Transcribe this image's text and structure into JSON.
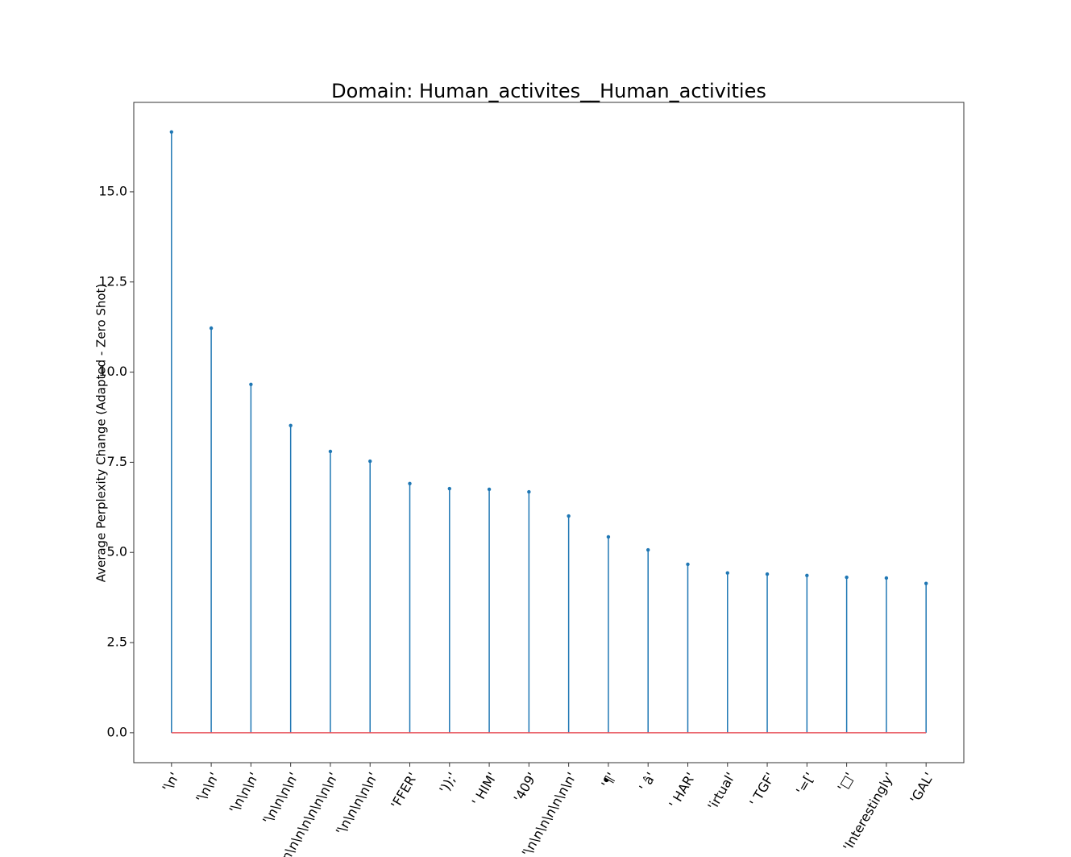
{
  "chart_data": {
    "type": "stem",
    "title": "Domain: Human_activites__Human_activities",
    "y_label": "Average Perplexity Change (Adapted - Zero Shot)",
    "categories": [
      "'\\n'",
      "'\\n\\n'",
      "'\\n\\n\\n'",
      "'\\n\\n\\n\\n'",
      "'\\n\\n\\n\\n\\n\\n\\n\\n'",
      "'\\n\\n\\n\\n\\n'",
      "'FFER'",
      "'));'",
      "' HIM'",
      "'409'",
      "'\\n\\n\\n\\n\\n\\n\\n'",
      "'¶'",
      "' â'",
      "' HAR'",
      "'irtual'",
      "' TGF'",
      "'=['",
      "'□'",
      "'Interestingly'",
      "'GAL'"
    ],
    "values": [
      16.66,
      11.22,
      9.66,
      8.52,
      7.8,
      7.53,
      6.91,
      6.77,
      6.75,
      6.68,
      6.01,
      5.43,
      5.07,
      4.67,
      4.43,
      4.4,
      4.36,
      4.31,
      4.29,
      4.14
    ],
    "color": "#1f77b4",
    "baseline_color": "#e8535b",
    "ylim": [
      -0.83,
      17.48
    ],
    "yticks": [
      {
        "value": 0,
        "label": "0.0"
      },
      2.5,
      {
        "value": 5,
        "label": "5.0"
      },
      7.5,
      {
        "value": 10,
        "label": "10.0"
      },
      12.5,
      {
        "value": 15,
        "label": "15.0"
      }
    ]
  }
}
